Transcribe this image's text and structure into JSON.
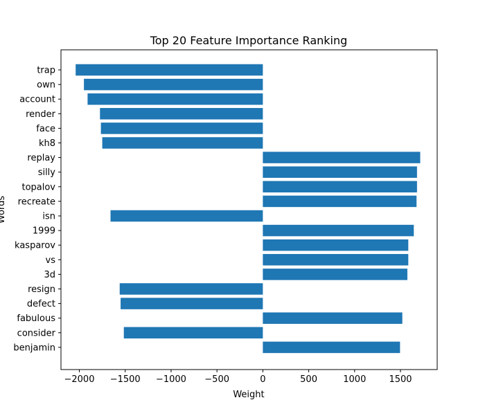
{
  "chart_data": {
    "type": "bar",
    "orientation": "horizontal",
    "title": "Top 20 Feature Importance Ranking",
    "xlabel": "Weight",
    "ylabel": "Words",
    "categories": [
      "trap",
      "own",
      "account",
      "render",
      "face",
      "kh8",
      "replay",
      "silly",
      "topalov",
      "recreate",
      "isn",
      "1999",
      "kasparov",
      "vs",
      "3d",
      "resign",
      "defect",
      "fabulous",
      "consider",
      "benjamin"
    ],
    "values": [
      -2040,
      -1950,
      -1910,
      -1775,
      -1765,
      -1750,
      1715,
      1680,
      1680,
      1675,
      -1660,
      1645,
      1585,
      1585,
      1575,
      -1560,
      -1550,
      1520,
      -1515,
      1495
    ],
    "xlim": [
      -2200,
      1900
    ],
    "xticks": [
      -2000,
      -1500,
      -1000,
      -500,
      0,
      500,
      1000,
      1500
    ],
    "xtick_labels": [
      "−2000",
      "−1500",
      "−1000",
      "−500",
      "0",
      "500",
      "1000",
      "1500"
    ],
    "grid": false,
    "legend": "none",
    "bar_color": "#1f77b4"
  }
}
